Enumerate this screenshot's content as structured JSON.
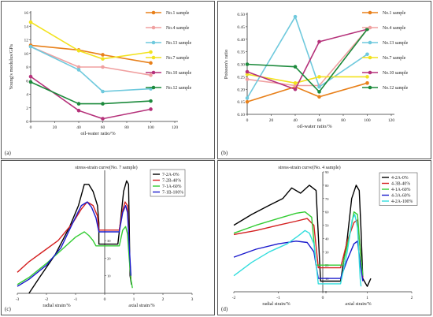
{
  "chart_data": [
    {
      "panel": "(a)",
      "type": "line",
      "xlabel": "oil-water ratio/%",
      "ylabel": "Young's modulus/GPa",
      "xlim": [
        0,
        120
      ],
      "ylim": [
        0,
        16
      ],
      "xticks": [
        0,
        20,
        40,
        60,
        80,
        100,
        120
      ],
      "yticks": [
        0,
        2,
        4,
        6,
        8,
        10,
        12,
        14,
        16
      ],
      "x": [
        0,
        40,
        60,
        100
      ],
      "series": [
        {
          "name": "No.1 sample",
          "color": "#e8801a",
          "values": [
            11.2,
            10.5,
            9.8,
            8.6
          ]
        },
        {
          "name": "No.4 sample",
          "color": "#f0a0a0",
          "values": [
            11.0,
            8.0,
            8.0,
            6.8
          ]
        },
        {
          "name": "No.13 sample",
          "color": "#6fc9dd",
          "values": [
            11.0,
            7.6,
            4.4,
            4.8
          ]
        },
        {
          "name": "No.7 sample",
          "color": "#f2e21e",
          "values": [
            14.6,
            10.4,
            9.2,
            10.2
          ]
        },
        {
          "name": "No.10 sample",
          "color": "#b5317a",
          "values": [
            6.6,
            1.6,
            0.4,
            1.8
          ]
        },
        {
          "name": "No.12 sample",
          "color": "#1c8a3c",
          "values": [
            5.8,
            2.6,
            2.6,
            3.0
          ]
        }
      ]
    },
    {
      "panel": "(b)",
      "type": "line",
      "xlabel": "oil-water ratio/%",
      "ylabel": "Poisson's ratio",
      "xlim": [
        0,
        120
      ],
      "ylim": [
        0.1,
        0.5
      ],
      "xticks": [
        0,
        20,
        40,
        60,
        80,
        100,
        120
      ],
      "yticks": [
        "0.10",
        "0.15",
        "0.20",
        "0.25",
        "0.30",
        "0.35",
        "0.40",
        "0.45",
        "0.50"
      ],
      "x": [
        0,
        40,
        60,
        100
      ],
      "series": [
        {
          "name": "No.1 sample",
          "color": "#e8801a",
          "values": [
            0.15,
            0.21,
            0.17,
            0.225
          ]
        },
        {
          "name": "No.4 sample",
          "color": "#f0a0a0",
          "values": [
            0.24,
            0.215,
            0.215,
            0.44
          ]
        },
        {
          "name": "No.13 sample",
          "color": "#6fc9dd",
          "values": [
            0.165,
            0.49,
            0.21,
            0.34
          ]
        },
        {
          "name": "No.7 sample",
          "color": "#f2e21e",
          "values": [
            0.26,
            0.225,
            0.25,
            0.25
          ]
        },
        {
          "name": "No.10 sample",
          "color": "#b5317a",
          "values": [
            0.27,
            0.2,
            0.39,
            0.44
          ]
        },
        {
          "name": "No.12 sample",
          "color": "#1c8a3c",
          "values": [
            0.3,
            0.29,
            0.19,
            0.44
          ]
        }
      ]
    },
    {
      "panel": "(c)",
      "type": "line",
      "title": "stress-strain curve(No. 7 sample)",
      "xlabel_left": "radial strain/%",
      "xlabel_right": "axial strain/%",
      "xlim": [
        -3,
        3
      ],
      "ylim": [
        0,
        70
      ],
      "xticks": [
        -3,
        -2,
        -1,
        0,
        1,
        2,
        3
      ],
      "yticks": [
        10,
        20,
        30
      ],
      "series": [
        {
          "name": "7-2A-0%",
          "color": "#000000",
          "points": [
            [
              -2.6,
              0
            ],
            [
              -2.2,
              10
            ],
            [
              -1.7,
              22
            ],
            [
              -1.2,
              38
            ],
            [
              -0.9,
              50
            ],
            [
              -0.7,
              62
            ],
            [
              -0.55,
              62
            ],
            [
              -0.4,
              58
            ],
            [
              -0.25,
              50
            ],
            [
              -0.2,
              40
            ],
            [
              -0.2,
              28
            ],
            [
              0.45,
              28
            ],
            [
              0.55,
              42
            ],
            [
              0.65,
              58
            ],
            [
              0.75,
              64
            ],
            [
              0.82,
              62
            ],
            [
              0.87,
              10
            ],
            [
              0.92,
              5
            ]
          ]
        },
        {
          "name": "7-2B-40%",
          "color": "#d42020",
          "points": [
            [
              -3.0,
              12
            ],
            [
              -2.6,
              18
            ],
            [
              -2.1,
              24
            ],
            [
              -1.6,
              30
            ],
            [
              -1.1,
              40
            ],
            [
              -0.8,
              48
            ],
            [
              -0.6,
              52
            ],
            [
              -0.4,
              50
            ],
            [
              -0.25,
              44
            ],
            [
              -0.2,
              36
            ],
            [
              0.5,
              36
            ],
            [
              0.6,
              46
            ],
            [
              0.7,
              52
            ],
            [
              0.78,
              50
            ],
            [
              0.82,
              36
            ],
            [
              0.86,
              20
            ],
            [
              0.9,
              8
            ]
          ]
        },
        {
          "name": "7-1A-60%",
          "color": "#33cc33",
          "points": [
            [
              -3.0,
              5
            ],
            [
              -2.6,
              9
            ],
            [
              -2.0,
              17
            ],
            [
              -1.4,
              26
            ],
            [
              -1.0,
              32
            ],
            [
              -0.7,
              35
            ],
            [
              -0.55,
              33
            ],
            [
              -0.4,
              30
            ],
            [
              -0.3,
              27
            ],
            [
              0.5,
              27
            ],
            [
              0.62,
              36
            ],
            [
              0.72,
              38
            ],
            [
              0.78,
              34
            ],
            [
              0.84,
              20
            ],
            [
              0.9,
              8
            ],
            [
              0.95,
              3
            ]
          ]
        },
        {
          "name": "7-1B-100%",
          "color": "#1a1acc",
          "points": [
            [
              -3.0,
              4
            ],
            [
              -2.6,
              8
            ],
            [
              -2.0,
              16
            ],
            [
              -1.5,
              26
            ],
            [
              -1.1,
              40
            ],
            [
              -0.8,
              50
            ],
            [
              -0.6,
              52
            ],
            [
              -0.45,
              49
            ],
            [
              -0.3,
              43
            ],
            [
              -0.2,
              35
            ],
            [
              0.5,
              35
            ],
            [
              0.62,
              46
            ],
            [
              0.72,
              50
            ],
            [
              0.78,
              46
            ],
            [
              0.84,
              28
            ],
            [
              0.9,
              10
            ]
          ]
        }
      ]
    },
    {
      "panel": "(d)",
      "type": "line",
      "title": "stress-strain curve(No. 4 sample)",
      "xlabel_left": "radial strain/%",
      "xlabel_right": "axial strain/%",
      "xlim": [
        -2,
        2
      ],
      "ylim": [
        0,
        90
      ],
      "xticks": [
        -2,
        -1,
        0,
        1,
        2
      ],
      "yticks": [
        0,
        10,
        20,
        30,
        40,
        50,
        60,
        70,
        80,
        90
      ],
      "series": [
        {
          "name": "4-2A-0%",
          "color": "#000000",
          "points": [
            [
              -2.0,
              50
            ],
            [
              -1.6,
              58
            ],
            [
              -1.2,
              65
            ],
            [
              -0.9,
              70
            ],
            [
              -0.7,
              78
            ],
            [
              -0.5,
              74
            ],
            [
              -0.3,
              80
            ],
            [
              -0.15,
              76
            ],
            [
              -0.05,
              8
            ],
            [
              0.4,
              8
            ],
            [
              0.55,
              40
            ],
            [
              0.65,
              70
            ],
            [
              0.75,
              80
            ],
            [
              0.82,
              76
            ],
            [
              0.86,
              46
            ],
            [
              0.9,
              10
            ],
            [
              1.0,
              4
            ],
            [
              1.08,
              10
            ]
          ]
        },
        {
          "name": "4-3B-40%",
          "color": "#d42020",
          "points": [
            [
              -2.0,
              43
            ],
            [
              -1.5,
              46
            ],
            [
              -1.0,
              50
            ],
            [
              -0.6,
              53
            ],
            [
              -0.35,
              55
            ],
            [
              -0.2,
              50
            ],
            [
              -0.1,
              18
            ],
            [
              0.4,
              18
            ],
            [
              0.55,
              38
            ],
            [
              0.7,
              52
            ],
            [
              0.78,
              54
            ],
            [
              0.84,
              32
            ],
            [
              0.9,
              10
            ]
          ]
        },
        {
          "name": "4-1A-60%",
          "color": "#33cc33",
          "points": [
            [
              -2.0,
              44
            ],
            [
              -1.5,
              50
            ],
            [
              -1.0,
              55
            ],
            [
              -0.6,
              59
            ],
            [
              -0.4,
              60
            ],
            [
              -0.25,
              56
            ],
            [
              -0.15,
              20
            ],
            [
              0.45,
              20
            ],
            [
              0.6,
              42
            ],
            [
              0.7,
              60
            ],
            [
              0.78,
              58
            ],
            [
              0.84,
              32
            ],
            [
              0.9,
              12
            ]
          ]
        },
        {
          "name": "4-3A-60%",
          "color": "#1a1acc",
          "points": [
            [
              -2.0,
              26
            ],
            [
              -1.5,
              32
            ],
            [
              -1.0,
              36
            ],
            [
              -0.6,
              38
            ],
            [
              -0.35,
              37
            ],
            [
              -0.2,
              30
            ],
            [
              -0.1,
              10
            ],
            [
              0.4,
              10
            ],
            [
              0.55,
              24
            ],
            [
              0.7,
              36
            ],
            [
              0.78,
              38
            ],
            [
              0.84,
              22
            ],
            [
              0.9,
              8
            ]
          ]
        },
        {
          "name": "4-2A-100%",
          "color": "#33dddd",
          "points": [
            [
              -2.0,
              12
            ],
            [
              -1.6,
              22
            ],
            [
              -1.2,
              30
            ],
            [
              -0.8,
              36
            ],
            [
              -0.55,
              42
            ],
            [
              -0.4,
              46
            ],
            [
              -0.3,
              44
            ],
            [
              -0.2,
              36
            ],
            [
              -0.1,
              6
            ],
            [
              0.4,
              6
            ],
            [
              0.55,
              30
            ],
            [
              0.66,
              54
            ],
            [
              0.72,
              58
            ],
            [
              0.78,
              48
            ],
            [
              0.84,
              10
            ],
            [
              0.86,
              4
            ]
          ]
        }
      ]
    }
  ]
}
